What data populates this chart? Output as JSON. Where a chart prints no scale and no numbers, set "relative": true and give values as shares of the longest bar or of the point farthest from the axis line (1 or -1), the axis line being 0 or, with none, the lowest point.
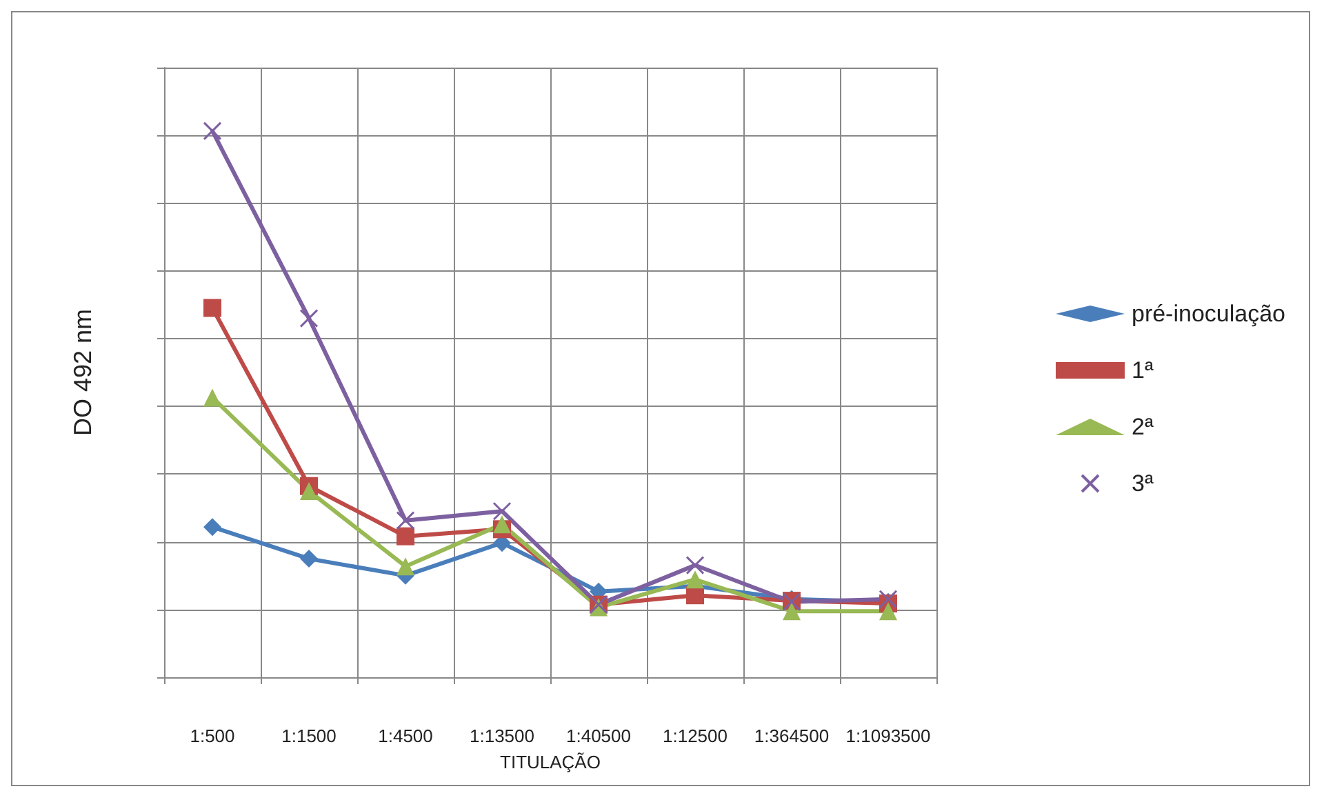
{
  "chart_data": {
    "type": "line",
    "relative": true,
    "xlabel": "TITULAÇÃO",
    "ylabel": "DO 492 nm",
    "categories": [
      "1:500",
      "1:1500",
      "1:4500",
      "1:13500",
      "1:40500",
      "1:12500",
      "1:364500",
      "1:1093500"
    ],
    "grid": true,
    "legend": "right",
    "series": [
      {
        "name": "pré-inoculação",
        "color": "#4a7ebb",
        "marker": "diamond",
        "values": [
          0.275,
          0.217,
          0.186,
          0.246,
          0.157,
          0.167,
          0.143,
          0.138
        ]
      },
      {
        "name": "1ª",
        "color": "#be4b48",
        "marker": "square",
        "values": [
          0.676,
          0.35,
          0.258,
          0.271,
          0.133,
          0.15,
          0.14,
          0.135
        ]
      },
      {
        "name": "2ª",
        "color": "#98b954",
        "marker": "triangle",
        "values": [
          0.512,
          0.341,
          0.203,
          0.28,
          0.128,
          0.179,
          0.121,
          0.121
        ]
      },
      {
        "name": "3ª",
        "color": "#7d60a0",
        "marker": "cross",
        "values": [
          1,
          0.657,
          0.287,
          0.304,
          0.133,
          0.205,
          0.138,
          0.143
        ]
      }
    ]
  }
}
